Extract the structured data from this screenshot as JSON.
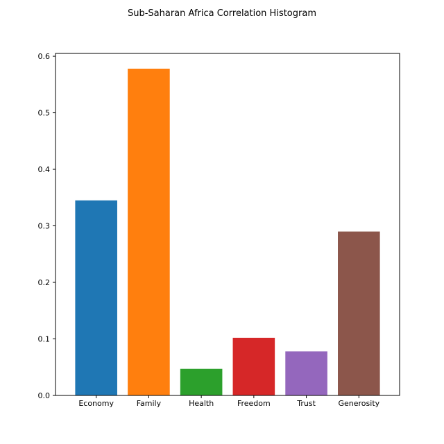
{
  "chart_data": {
    "type": "bar",
    "title": "Sub-Saharan Africa Correlation Histogram",
    "xlabel": "",
    "ylabel": "",
    "categories": [
      "Economy",
      "Family",
      "Health",
      "Freedom",
      "Trust",
      "Generosity"
    ],
    "values": [
      0.345,
      0.578,
      0.047,
      0.102,
      0.078,
      0.29
    ],
    "colors": [
      "#1f77b4",
      "#ff7f0e",
      "#2ca02c",
      "#d62728",
      "#9467bd",
      "#8c564b"
    ],
    "ylim": [
      0,
      0.605
    ],
    "yticks": [
      0.0,
      0.1,
      0.2,
      0.3,
      0.4,
      0.5,
      0.6
    ],
    "ytick_labels": [
      "0.0",
      "0.1",
      "0.2",
      "0.3",
      "0.4",
      "0.5",
      "0.6"
    ],
    "grid": false,
    "legend": "none"
  }
}
